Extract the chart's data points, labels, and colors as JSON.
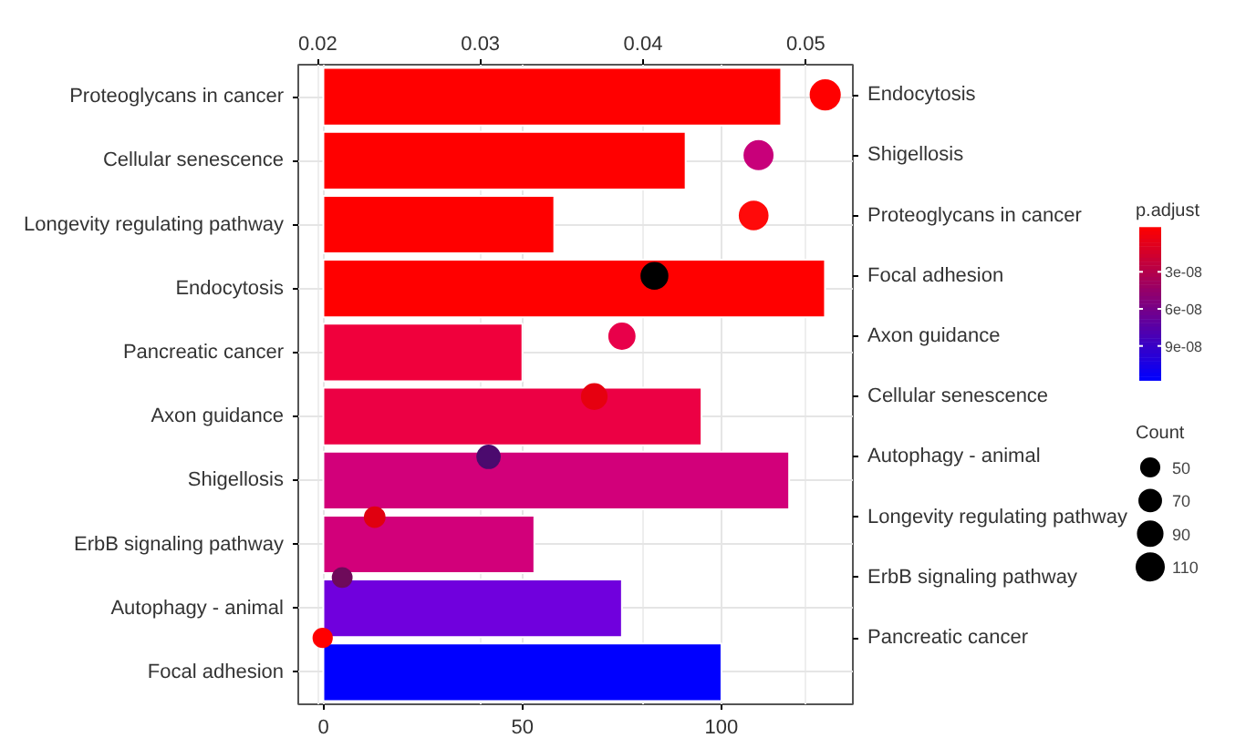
{
  "chart_data": [
    {
      "type": "bar",
      "orientation": "horizontal",
      "categories": [
        "Proteoglycans in cancer",
        "Cellular senescence",
        "Longevity regulating pathway",
        "Endocytosis",
        "Pancreatic cancer",
        "Axon guidance",
        "Shigellosis",
        "ErbB signaling pathway",
        "Autophagy - animal",
        "Focal adhesion"
      ],
      "values": [
        115,
        91,
        58,
        126,
        50,
        95,
        117,
        53,
        75,
        100
      ],
      "colors": [
        "#ff0000",
        "#ff0000",
        "#ff0000",
        "#ff0000",
        "#f0003c",
        "#ec0044",
        "#d2007a",
        "#d2007a",
        "#7000dd",
        "#0000ff"
      ],
      "xlim": [
        -6.3,
        133
      ],
      "xticks": [
        0,
        50,
        100
      ],
      "grid": true,
      "clabel": "p.adjust",
      "clim": [
        -6e-09,
        1.18e-07
      ],
      "cticks": [
        {
          "value": 3e-08,
          "label": "3e-08"
        },
        {
          "value": 6e-08,
          "label": "6e-08"
        },
        {
          "value": 9e-08,
          "label": "9e-08"
        }
      ]
    },
    {
      "type": "bubble",
      "orientation": "horizontal",
      "categories": [
        "Endocytosis",
        "Shigellosis",
        "Proteoglycans in cancer",
        "Focal adhesion",
        "Axon guidance",
        "Cellular senescence",
        "Autophagy - animal",
        "Longevity regulating pathway",
        "ErbB signaling pathway",
        "Pancreatic cancer"
      ],
      "values": [
        0.0512,
        0.0471,
        0.0468,
        0.0407,
        0.0387,
        0.037,
        0.0305,
        0.0235,
        0.0215,
        0.0203
      ],
      "sizes": [
        126,
        117,
        115,
        100,
        95,
        91,
        75,
        58,
        53,
        50
      ],
      "colors": [
        "#ff0000",
        "#c8007a",
        "#ff0a0a",
        "#000000",
        "#e8004a",
        "#e60010",
        "#4b0a6e",
        "#e00010",
        "#6e0a5a",
        "#ff0000"
      ],
      "xlim": [
        0.0188,
        0.0529
      ],
      "xticks": [
        0.02,
        0.03,
        0.04,
        0.05
      ],
      "legend_title": "Count",
      "size_legend": [
        50,
        70,
        90,
        110
      ],
      "grid": "x"
    }
  ]
}
